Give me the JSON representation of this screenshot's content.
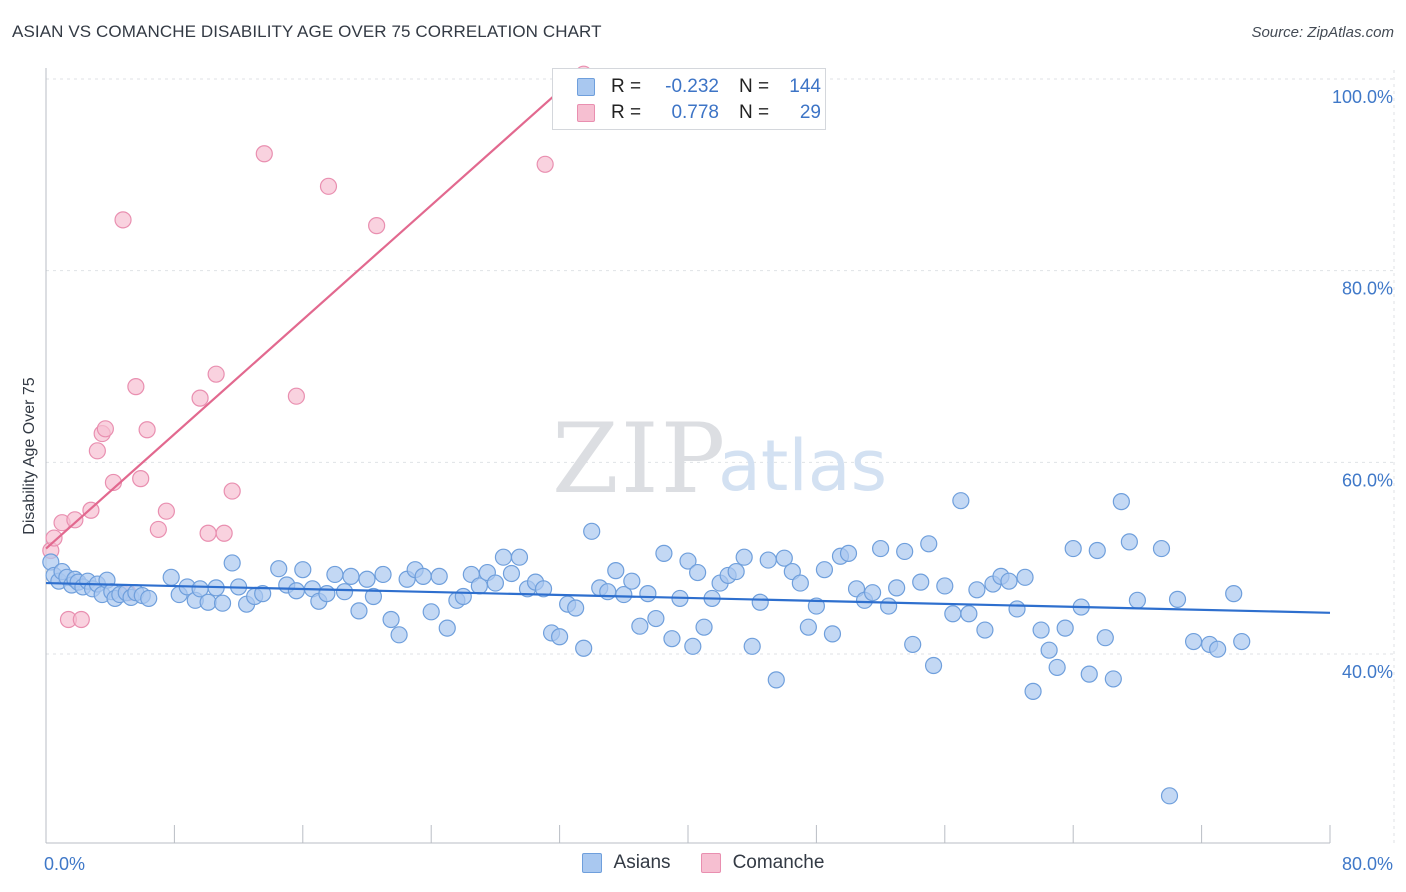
{
  "header": {
    "title": "ASIAN VS COMANCHE DISABILITY AGE OVER 75 CORRELATION CHART",
    "source": "Source: ZipAtlas.com"
  },
  "watermark": {
    "zip": "ZIP",
    "atlas": "atlas"
  },
  "colors": {
    "asians_fill": "#a9c8f0",
    "asians_stroke": "#6f9fdc",
    "asians_line": "#2e6fce",
    "comanche_fill": "#f6bfd1",
    "comanche_stroke": "#e98fb0",
    "comanche_line": "#e2698f",
    "tick_text": "#3f78c8"
  },
  "stats": [
    {
      "r_label": "R =",
      "r_value": "-0.232",
      "n_label": "N =",
      "n_value": "144"
    },
    {
      "r_label": "R =",
      "r_value": "0.778",
      "n_label": "N =",
      "n_value": "29"
    }
  ],
  "legend": [
    {
      "label": "Asians"
    },
    {
      "label": "Comanche"
    }
  ],
  "chart_data": {
    "type": "scatter",
    "title": "ASIAN VS COMANCHE DISABILITY AGE OVER 75 CORRELATION CHART",
    "xlabel": "",
    "ylabel": "Disability Age Over 75",
    "xlim": [
      0,
      80
    ],
    "ylim": [
      21,
      102
    ],
    "x_tick_labels": [
      {
        "value": 0,
        "label": "0.0%"
      },
      {
        "value": 80,
        "label": "80.0%"
      }
    ],
    "y_tick_labels": [
      {
        "value": 100,
        "label": "100.0%"
      },
      {
        "value": 80,
        "label": "80.0%"
      },
      {
        "value": 60,
        "label": "60.0%"
      },
      {
        "value": 40,
        "label": "40.0%"
      }
    ],
    "grid": true,
    "legend_position": "bottom-center",
    "series": [
      {
        "name": "Asians",
        "trend": {
          "x": [
            0,
            80
          ],
          "y": [
            47.4,
            44.3
          ]
        },
        "points": [
          [
            0.3,
            49.6
          ],
          [
            0.5,
            48.2
          ],
          [
            0.8,
            47.6
          ],
          [
            1.0,
            48.6
          ],
          [
            1.3,
            48.0
          ],
          [
            1.6,
            47.2
          ],
          [
            1.8,
            47.8
          ],
          [
            2.0,
            47.5
          ],
          [
            2.3,
            47.0
          ],
          [
            2.6,
            47.6
          ],
          [
            2.9,
            46.8
          ],
          [
            3.2,
            47.3
          ],
          [
            3.5,
            46.2
          ],
          [
            3.8,
            47.7
          ],
          [
            4.1,
            46.5
          ],
          [
            4.3,
            45.8
          ],
          [
            4.6,
            46.2
          ],
          [
            5.0,
            46.4
          ],
          [
            5.3,
            45.9
          ],
          [
            5.6,
            46.4
          ],
          [
            6.0,
            46.1
          ],
          [
            6.4,
            45.8
          ],
          [
            7.8,
            48.0
          ],
          [
            8.3,
            46.2
          ],
          [
            8.8,
            47.0
          ],
          [
            9.3,
            45.6
          ],
          [
            9.6,
            46.8
          ],
          [
            10.1,
            45.4
          ],
          [
            10.6,
            46.9
          ],
          [
            11.0,
            45.3
          ],
          [
            11.6,
            49.5
          ],
          [
            12.0,
            47.0
          ],
          [
            12.5,
            45.2
          ],
          [
            13.0,
            46.0
          ],
          [
            13.5,
            46.3
          ],
          [
            14.5,
            48.9
          ],
          [
            15.0,
            47.2
          ],
          [
            15.6,
            46.6
          ],
          [
            16.0,
            48.8
          ],
          [
            16.6,
            46.8
          ],
          [
            17.0,
            45.5
          ],
          [
            17.5,
            46.3
          ],
          [
            18.0,
            48.3
          ],
          [
            18.6,
            46.5
          ],
          [
            19.0,
            48.1
          ],
          [
            19.5,
            44.5
          ],
          [
            20.0,
            47.8
          ],
          [
            20.4,
            46.0
          ],
          [
            21.0,
            48.3
          ],
          [
            21.5,
            43.6
          ],
          [
            22.0,
            42.0
          ],
          [
            22.5,
            47.8
          ],
          [
            23.0,
            48.8
          ],
          [
            23.5,
            48.1
          ],
          [
            24.0,
            44.4
          ],
          [
            24.5,
            48.1
          ],
          [
            25.0,
            42.7
          ],
          [
            25.6,
            45.6
          ],
          [
            26.0,
            46.0
          ],
          [
            26.5,
            48.3
          ],
          [
            27.0,
            47.1
          ],
          [
            27.5,
            48.5
          ],
          [
            28.0,
            47.4
          ],
          [
            28.5,
            50.1
          ],
          [
            29.0,
            48.4
          ],
          [
            29.5,
            50.1
          ],
          [
            30.0,
            46.8
          ],
          [
            30.5,
            47.5
          ],
          [
            31.0,
            46.8
          ],
          [
            31.5,
            42.2
          ],
          [
            32.0,
            41.8
          ],
          [
            32.5,
            45.2
          ],
          [
            33.0,
            44.8
          ],
          [
            33.5,
            40.6
          ],
          [
            34.0,
            52.8
          ],
          [
            34.5,
            46.9
          ],
          [
            35.0,
            46.5
          ],
          [
            35.5,
            48.7
          ],
          [
            36.0,
            46.2
          ],
          [
            36.5,
            47.6
          ],
          [
            37.0,
            42.9
          ],
          [
            37.5,
            46.3
          ],
          [
            38.0,
            43.7
          ],
          [
            38.5,
            50.5
          ],
          [
            39.0,
            41.6
          ],
          [
            39.5,
            45.8
          ],
          [
            40.0,
            49.7
          ],
          [
            40.3,
            40.8
          ],
          [
            40.6,
            48.5
          ],
          [
            41.0,
            42.8
          ],
          [
            41.5,
            45.8
          ],
          [
            42.0,
            47.4
          ],
          [
            42.5,
            48.2
          ],
          [
            43.0,
            48.6
          ],
          [
            43.5,
            50.1
          ],
          [
            44.0,
            40.8
          ],
          [
            44.5,
            45.4
          ],
          [
            45.0,
            49.8
          ],
          [
            45.5,
            37.3
          ],
          [
            46.0,
            50.0
          ],
          [
            46.5,
            48.6
          ],
          [
            47.0,
            47.4
          ],
          [
            47.5,
            42.8
          ],
          [
            48.0,
            45.0
          ],
          [
            48.5,
            48.8
          ],
          [
            49.0,
            42.1
          ],
          [
            49.5,
            50.2
          ],
          [
            50.0,
            50.5
          ],
          [
            50.5,
            46.8
          ],
          [
            51.0,
            45.6
          ],
          [
            51.5,
            46.4
          ],
          [
            52.0,
            51.0
          ],
          [
            52.5,
            45.0
          ],
          [
            53.0,
            46.9
          ],
          [
            53.5,
            50.7
          ],
          [
            54.0,
            41.0
          ],
          [
            54.5,
            47.5
          ],
          [
            55.0,
            51.5
          ],
          [
            55.3,
            38.8
          ],
          [
            56.0,
            47.1
          ],
          [
            56.5,
            44.2
          ],
          [
            57.0,
            56.0
          ],
          [
            57.5,
            44.2
          ],
          [
            58.0,
            46.7
          ],
          [
            58.5,
            42.5
          ],
          [
            59.0,
            47.3
          ],
          [
            59.5,
            48.1
          ],
          [
            60.0,
            47.6
          ],
          [
            60.5,
            44.7
          ],
          [
            61.0,
            48.0
          ],
          [
            61.5,
            36.1
          ],
          [
            62.0,
            42.5
          ],
          [
            62.5,
            40.4
          ],
          [
            63.0,
            38.6
          ],
          [
            63.5,
            42.7
          ],
          [
            64.0,
            51.0
          ],
          [
            64.5,
            44.9
          ],
          [
            65.0,
            37.9
          ],
          [
            65.5,
            50.8
          ],
          [
            66.0,
            41.7
          ],
          [
            66.5,
            37.4
          ],
          [
            67.0,
            55.9
          ],
          [
            67.5,
            51.7
          ],
          [
            68.0,
            45.6
          ]
        ]
      },
      {
        "name": "Comanche",
        "trend": {
          "x": [
            0,
            33.5
          ],
          "y": [
            51.0,
            101.0
          ]
        },
        "points": [
          [
            0.3,
            50.8
          ],
          [
            0.5,
            52.1
          ],
          [
            1.0,
            53.7
          ],
          [
            1.4,
            43.6
          ],
          [
            1.8,
            54.0
          ],
          [
            2.2,
            43.6
          ],
          [
            2.8,
            55.0
          ],
          [
            3.2,
            61.2
          ],
          [
            3.5,
            63.0
          ],
          [
            3.7,
            63.5
          ],
          [
            4.2,
            57.9
          ],
          [
            4.8,
            85.3
          ],
          [
            5.1,
            46.4
          ],
          [
            5.6,
            67.9
          ],
          [
            5.9,
            58.3
          ],
          [
            6.3,
            63.4
          ],
          [
            7.0,
            53.0
          ],
          [
            7.5,
            54.9
          ],
          [
            9.6,
            66.7
          ],
          [
            10.1,
            52.6
          ],
          [
            10.6,
            69.2
          ],
          [
            11.1,
            52.6
          ],
          [
            11.6,
            57.0
          ],
          [
            13.6,
            92.2
          ],
          [
            15.6,
            66.9
          ],
          [
            17.6,
            88.8
          ],
          [
            20.6,
            84.7
          ],
          [
            31.1,
            91.1
          ],
          [
            33.5,
            100.5
          ]
        ]
      }
    ],
    "extra_asian_points": [
      [
        69.5,
        51.0
      ],
      [
        70.0,
        25.2
      ],
      [
        70.5,
        45.7
      ],
      [
        71.5,
        41.3
      ],
      [
        72.5,
        41.0
      ],
      [
        73.0,
        40.5
      ],
      [
        74.0,
        46.3
      ],
      [
        74.5,
        41.3
      ]
    ]
  }
}
